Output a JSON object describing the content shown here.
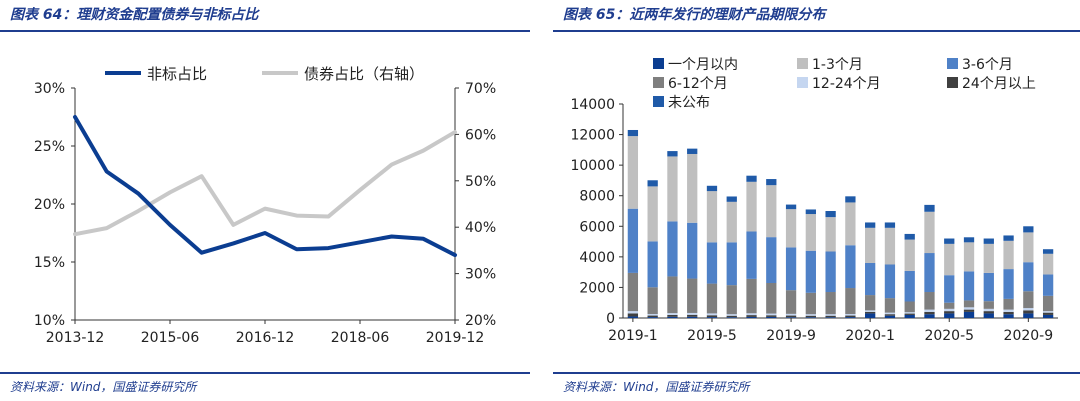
{
  "left": {
    "title": "图表 64：理财资金配置债券与非标占比",
    "source": "资料来源：Wind，国盛证券研究所",
    "chart_data": {
      "type": "line",
      "x": [
        "2013-12",
        "2014-06",
        "2014-12",
        "2015-06",
        "2015-12",
        "2016-06",
        "2016-12",
        "2017-06",
        "2017-12",
        "2018-06",
        "2018-12",
        "2019-06",
        "2019-12"
      ],
      "xticks": [
        "2013-12",
        "2015-06",
        "2016-12",
        "2018-06",
        "2019-12"
      ],
      "series": [
        {
          "name": "非标占比",
          "axis": "left",
          "color": "#0b3d91",
          "values": [
            27.5,
            22.8,
            20.9,
            18.2,
            15.8,
            16.6,
            17.5,
            16.1,
            16.2,
            16.7,
            17.2,
            17.0,
            15.6
          ]
        },
        {
          "name": "债券占比（右轴）",
          "axis": "right",
          "color": "#c8c8c8",
          "values": [
            38.5,
            39.8,
            43.5,
            47.5,
            51.0,
            40.5,
            44.0,
            42.5,
            42.3,
            48.0,
            53.5,
            56.5,
            60.5
          ]
        }
      ],
      "ylim_left": [
        10,
        30
      ],
      "yticks_left": [
        "10%",
        "15%",
        "20%",
        "25%",
        "30%"
      ],
      "ylim_right": [
        20,
        70
      ],
      "yticks_right": [
        "20%",
        "30%",
        "40%",
        "50%",
        "60%",
        "70%"
      ],
      "legend_position": "top"
    }
  },
  "right": {
    "title": "图表 65：近两年发行的理财产品期限分布",
    "source": "资料来源：Wind，国盛证券研究所",
    "chart_data": {
      "type": "bar",
      "stacked": true,
      "categories": [
        "2019-1",
        "2019-2",
        "2019-3",
        "2019-4",
        "2019-5",
        "2019-6",
        "2019-7",
        "2019-8",
        "2019-9",
        "2019-10",
        "2019-11",
        "2019-12",
        "2020-1",
        "2020-2",
        "2020-3",
        "2020-4",
        "2020-5",
        "2020-6",
        "2020-7",
        "2020-8",
        "2020-9",
        "2020-10"
      ],
      "xticks": [
        "2019-1",
        "2019-5",
        "2019-9",
        "2020-1",
        "2020-5",
        "2020-9"
      ],
      "ylim": [
        0,
        14000
      ],
      "yticks": [
        "0",
        "2000",
        "4000",
        "6000",
        "8000",
        "10000",
        "12000",
        "14000"
      ],
      "legend_position": "top",
      "series": [
        {
          "name": "一个月以内",
          "color": "#0b3d91",
          "values": [
            100,
            60,
            80,
            80,
            60,
            50,
            70,
            70,
            50,
            50,
            50,
            60,
            300,
            150,
            200,
            250,
            300,
            400,
            300,
            250,
            300,
            200
          ]
        },
        {
          "name": "24个月以上",
          "color": "#404040",
          "values": [
            200,
            100,
            120,
            130,
            120,
            100,
            120,
            110,
            110,
            100,
            100,
            100,
            100,
            100,
            90,
            150,
            150,
            150,
            150,
            150,
            200,
            150
          ]
        },
        {
          "name": "12-24个月",
          "color": "#c5d6f0",
          "values": [
            150,
            100,
            120,
            120,
            120,
            100,
            120,
            110,
            110,
            100,
            100,
            100,
            100,
            100,
            90,
            150,
            150,
            150,
            150,
            150,
            150,
            100
          ]
        },
        {
          "name": "6-12个月",
          "color": "#7f7f7f",
          "values": [
            2500,
            1750,
            2400,
            2250,
            1950,
            1900,
            2250,
            2000,
            1550,
            1400,
            1450,
            1700,
            1000,
            950,
            700,
            1150,
            400,
            450,
            500,
            700,
            1100,
            1000
          ]
        },
        {
          "name": "3-6个月",
          "color": "#4f81c7",
          "values": [
            4200,
            3000,
            3600,
            3650,
            2700,
            2800,
            3100,
            3000,
            2800,
            2750,
            2650,
            2800,
            2100,
            2200,
            2000,
            2550,
            1800,
            1900,
            1850,
            1950,
            1900,
            1400
          ]
        },
        {
          "name": "1-3个月",
          "color": "#bfbfbf",
          "values": [
            4750,
            3600,
            4250,
            4500,
            3350,
            2650,
            3250,
            3400,
            2500,
            2400,
            2250,
            2800,
            2300,
            2400,
            2050,
            2700,
            2050,
            1900,
            1900,
            1850,
            1950,
            1350
          ]
        },
        {
          "name": "未公布",
          "color": "#1f5aa8",
          "values": [
            400,
            400,
            350,
            350,
            350,
            350,
            400,
            400,
            300,
            300,
            400,
            400,
            350,
            350,
            370,
            450,
            350,
            330,
            350,
            350,
            400,
            300
          ]
        }
      ],
      "legend": [
        {
          "name": "一个月以内",
          "color": "#0b3d91"
        },
        {
          "name": "1-3个月",
          "color": "#bfbfbf"
        },
        {
          "name": "3-6个月",
          "color": "#4f81c7"
        },
        {
          "name": "6-12个月",
          "color": "#7f7f7f"
        },
        {
          "name": "12-24个月",
          "color": "#c5d6f0"
        },
        {
          "name": "24个月以上",
          "color": "#404040"
        },
        {
          "name": "未公布",
          "color": "#1f5aa8"
        }
      ]
    }
  }
}
